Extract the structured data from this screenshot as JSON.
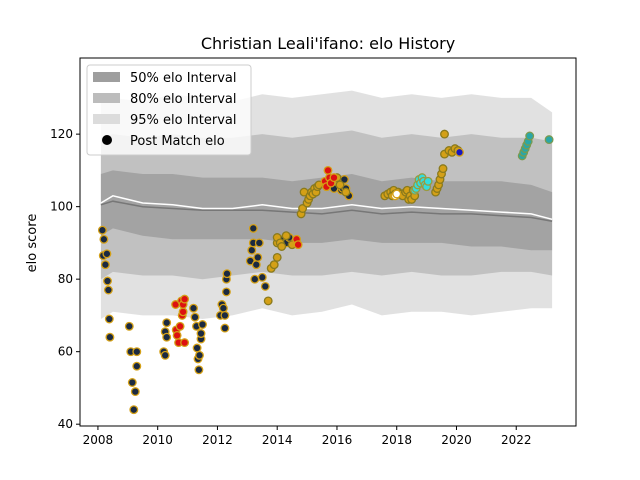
{
  "chart_data": {
    "type": "scatter",
    "title": "Christian Leali'ifano: elo History",
    "xlabel": "",
    "ylabel": "elo score",
    "xlim": [
      2007.4,
      2024.0
    ],
    "ylim": [
      39.5,
      141
    ],
    "xticks": [
      2008,
      2010,
      2012,
      2014,
      2016,
      2018,
      2020,
      2022
    ],
    "yticks": [
      40,
      60,
      80,
      100,
      120
    ],
    "legend_position": "top-left",
    "legend": [
      {
        "label": "50% elo Interval",
        "kind": "band",
        "color": "#9e9e9e"
      },
      {
        "label": "80% elo Interval",
        "kind": "band",
        "color": "#bcbcbc"
      },
      {
        "label": "95% elo Interval",
        "kind": "band",
        "color": "#dcdcdc"
      },
      {
        "label": "Post Match elo",
        "kind": "marker",
        "color": "#000000"
      }
    ],
    "bands": {
      "x": [
        2008.1,
        2008.5,
        2009.5,
        2010.5,
        2011.5,
        2012.5,
        2013.5,
        2014.5,
        2015.5,
        2016.5,
        2017.5,
        2018.5,
        2019.5,
        2020.5,
        2021.5,
        2022.5,
        2023.2
      ],
      "p95_hi": [
        129,
        130,
        129,
        131,
        130,
        129,
        131,
        130,
        131,
        132,
        130,
        131,
        130,
        131,
        130,
        130,
        126
      ],
      "p95_lo": [
        69,
        71,
        70,
        70,
        69,
        70,
        72,
        70,
        71,
        73,
        70,
        71,
        71,
        70,
        71,
        72,
        72
      ],
      "p80_hi": [
        119,
        120,
        119,
        120,
        119,
        119,
        120,
        119,
        120,
        121,
        119,
        120,
        119,
        120,
        119,
        119,
        118
      ],
      "p80_lo": [
        80,
        82,
        81,
        81,
        80,
        81,
        82,
        81,
        81,
        82,
        81,
        82,
        81,
        81,
        82,
        82,
        81
      ],
      "p50_hi": [
        109,
        110,
        109,
        109,
        108,
        108,
        108,
        107,
        108,
        109,
        107,
        108,
        107,
        107,
        107,
        106,
        104
      ],
      "p50_lo": [
        92,
        94,
        92,
        91,
        91,
        91,
        91,
        90,
        90,
        91,
        90,
        90,
        90,
        89,
        89,
        88,
        88
      ],
      "median": [
        100.5,
        101.5,
        100,
        99.5,
        99,
        99,
        99,
        98.5,
        98,
        99,
        98,
        98.5,
        98,
        98,
        97.5,
        97,
        96
      ],
      "mean": [
        101,
        103,
        101,
        100.5,
        99.5,
        99.5,
        100.5,
        99.5,
        99.5,
        100.5,
        99.5,
        100,
        99.5,
        99,
        98.5,
        98,
        96.5
      ]
    },
    "series": [
      {
        "fill": "#1b2a41",
        "edge": "#d4a017",
        "points": [
          [
            2008.15,
            93.5
          ],
          [
            2008.2,
            91
          ],
          [
            2008.18,
            86.5
          ],
          [
            2008.25,
            84
          ],
          [
            2008.3,
            87
          ],
          [
            2008.32,
            79.5
          ],
          [
            2008.35,
            77
          ],
          [
            2008.38,
            69
          ],
          [
            2008.4,
            64
          ],
          [
            2009.05,
            67
          ],
          [
            2009.1,
            60
          ],
          [
            2009.15,
            51.5
          ],
          [
            2009.2,
            44
          ],
          [
            2009.25,
            49
          ],
          [
            2009.3,
            56
          ],
          [
            2009.3,
            60
          ],
          [
            2010.2,
            60
          ],
          [
            2010.25,
            59
          ],
          [
            2010.25,
            65.5
          ],
          [
            2010.3,
            68
          ],
          [
            2010.3,
            64
          ],
          [
            2011.2,
            72
          ],
          [
            2011.25,
            69.5
          ],
          [
            2011.3,
            67
          ],
          [
            2011.32,
            61
          ],
          [
            2011.35,
            58
          ],
          [
            2011.38,
            55
          ],
          [
            2011.4,
            59
          ],
          [
            2011.45,
            63.5
          ],
          [
            2011.45,
            65
          ],
          [
            2011.5,
            67.5
          ],
          [
            2012.1,
            70
          ],
          [
            2012.15,
            73
          ],
          [
            2012.2,
            72
          ],
          [
            2012.25,
            70
          ],
          [
            2012.25,
            66.5
          ],
          [
            2012.3,
            76.5
          ],
          [
            2012.3,
            80
          ],
          [
            2012.32,
            81.5
          ],
          [
            2013.1,
            85
          ],
          [
            2013.15,
            88
          ],
          [
            2013.2,
            90
          ],
          [
            2013.2,
            94
          ],
          [
            2013.25,
            80
          ],
          [
            2013.3,
            84
          ],
          [
            2013.35,
            86
          ],
          [
            2013.4,
            90
          ],
          [
            2013.5,
            80.5
          ],
          [
            2013.6,
            78
          ],
          [
            2014.2,
            91
          ],
          [
            2014.3,
            90
          ],
          [
            2014.4,
            91.5
          ],
          [
            2015.9,
            105
          ],
          [
            2016.05,
            107.5
          ],
          [
            2016.1,
            106
          ],
          [
            2016.15,
            104.5
          ],
          [
            2016.2,
            105
          ],
          [
            2016.25,
            107.5
          ],
          [
            2016.3,
            105
          ],
          [
            2016.4,
            103
          ]
        ]
      },
      {
        "fill": "#d4a017",
        "edge": "#8a7a1c",
        "points": [
          [
            2013.7,
            74
          ],
          [
            2013.8,
            83
          ],
          [
            2013.9,
            84
          ],
          [
            2014.0,
            86
          ],
          [
            2014.0,
            90
          ],
          [
            2014.0,
            91.5
          ],
          [
            2014.1,
            90
          ],
          [
            2014.15,
            89
          ],
          [
            2014.3,
            92
          ],
          [
            2014.5,
            89.5
          ],
          [
            2014.8,
            98
          ],
          [
            2014.85,
            99.5
          ],
          [
            2014.9,
            104
          ],
          [
            2015.0,
            101
          ],
          [
            2015.05,
            102
          ],
          [
            2015.1,
            103
          ],
          [
            2015.15,
            104
          ],
          [
            2015.2,
            103.5
          ],
          [
            2015.25,
            105
          ],
          [
            2015.3,
            104
          ],
          [
            2015.35,
            105.5
          ],
          [
            2015.4,
            106
          ],
          [
            2016.0,
            108
          ],
          [
            2016.1,
            106
          ],
          [
            2016.3,
            104
          ],
          [
            2017.6,
            103
          ],
          [
            2017.7,
            103.5
          ],
          [
            2017.8,
            104
          ],
          [
            2017.85,
            103
          ],
          [
            2017.9,
            104.5
          ],
          [
            2017.95,
            103.5
          ],
          [
            2018.0,
            103.5
          ],
          [
            2018.05,
            104
          ],
          [
            2018.1,
            103.5
          ],
          [
            2018.2,
            103
          ],
          [
            2018.3,
            104
          ],
          [
            2018.35,
            104.5
          ],
          [
            2018.4,
            102
          ],
          [
            2018.45,
            103
          ],
          [
            2018.5,
            102
          ],
          [
            2018.55,
            104.5
          ],
          [
            2018.6,
            103
          ],
          [
            2019.3,
            104
          ],
          [
            2019.35,
            105
          ],
          [
            2019.4,
            106
          ],
          [
            2019.45,
            107.5
          ],
          [
            2019.5,
            109
          ],
          [
            2019.55,
            110.5
          ],
          [
            2019.6,
            114.5
          ],
          [
            2019.6,
            120
          ],
          [
            2019.75,
            115.5
          ],
          [
            2019.85,
            115
          ],
          [
            2019.95,
            116
          ],
          [
            2020.05,
            115.5
          ]
        ]
      },
      {
        "fill": "#dd1111",
        "edge": "#d4a017",
        "points": [
          [
            2010.6,
            73
          ],
          [
            2010.62,
            66
          ],
          [
            2010.65,
            64.5
          ],
          [
            2010.7,
            62.5
          ],
          [
            2010.75,
            67
          ],
          [
            2010.8,
            74
          ],
          [
            2010.82,
            70
          ],
          [
            2010.85,
            71
          ],
          [
            2010.85,
            73
          ],
          [
            2010.9,
            74.5
          ],
          [
            2010.9,
            62.5
          ],
          [
            2014.65,
            91
          ],
          [
            2014.7,
            89.5
          ],
          [
            2015.6,
            107
          ],
          [
            2015.65,
            105.5
          ],
          [
            2015.7,
            110
          ],
          [
            2015.75,
            108
          ],
          [
            2015.8,
            106.5
          ],
          [
            2015.9,
            108
          ]
        ]
      },
      {
        "fill": "#33dddd",
        "edge": "#9a9a40",
        "points": [
          [
            2018.6,
            104.5
          ],
          [
            2018.65,
            105
          ],
          [
            2018.7,
            106
          ],
          [
            2018.75,
            107.5
          ],
          [
            2018.8,
            106.5
          ],
          [
            2018.85,
            108
          ],
          [
            2018.9,
            107
          ],
          [
            2018.95,
            106
          ],
          [
            2019.0,
            105.5
          ],
          [
            2019.05,
            107
          ]
        ]
      },
      {
        "fill": "#ffffff",
        "edge": "#d4a017",
        "points": [
          [
            2017.95,
            103
          ],
          [
            2018.0,
            103.5
          ]
        ]
      },
      {
        "fill": "#1818c0",
        "edge": "#d4a017",
        "points": [
          [
            2020.1,
            115
          ]
        ]
      },
      {
        "fill": "#2aa7a7",
        "edge": "#7a9a50",
        "points": [
          [
            2022.2,
            114
          ],
          [
            2022.25,
            115
          ],
          [
            2022.3,
            116
          ],
          [
            2022.35,
            117
          ],
          [
            2022.4,
            118
          ],
          [
            2022.45,
            119.5
          ],
          [
            2023.1,
            118.5
          ]
        ]
      }
    ]
  }
}
